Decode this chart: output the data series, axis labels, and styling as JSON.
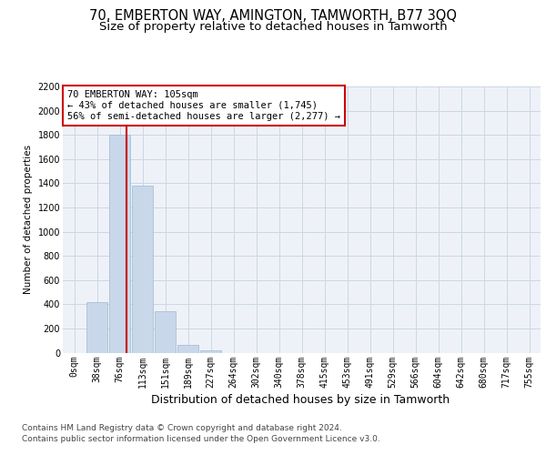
{
  "title": "70, EMBERTON WAY, AMINGTON, TAMWORTH, B77 3QQ",
  "subtitle": "Size of property relative to detached houses in Tamworth",
  "xlabel": "Distribution of detached houses by size in Tamworth",
  "ylabel": "Number of detached properties",
  "bar_labels": [
    "0sqm",
    "38sqm",
    "76sqm",
    "113sqm",
    "151sqm",
    "189sqm",
    "227sqm",
    "264sqm",
    "302sqm",
    "340sqm",
    "378sqm",
    "415sqm",
    "453sqm",
    "491sqm",
    "529sqm",
    "566sqm",
    "604sqm",
    "642sqm",
    "680sqm",
    "717sqm",
    "755sqm"
  ],
  "bar_values": [
    0,
    420,
    1800,
    1380,
    340,
    65,
    20,
    0,
    0,
    0,
    0,
    0,
    0,
    0,
    0,
    0,
    0,
    0,
    0,
    0,
    0
  ],
  "bar_color": "#c8d8ea",
  "bar_edge_color": "#a0b8ce",
  "vline_color": "#cc0000",
  "annotation_text": "70 EMBERTON WAY: 105sqm\n← 43% of detached houses are smaller (1,745)\n56% of semi-detached houses are larger (2,277) →",
  "annotation_box_color": "#ffffff",
  "annotation_box_edge": "#cc0000",
  "ylim": [
    0,
    2200
  ],
  "yticks": [
    0,
    200,
    400,
    600,
    800,
    1000,
    1200,
    1400,
    1600,
    1800,
    2000,
    2200
  ],
  "grid_color": "#ccd6e4",
  "footer1": "Contains HM Land Registry data © Crown copyright and database right 2024.",
  "footer2": "Contains public sector information licensed under the Open Government Licence v3.0.",
  "title_fontsize": 10.5,
  "subtitle_fontsize": 9.5,
  "xlabel_fontsize": 9,
  "ylabel_fontsize": 7.5,
  "tick_fontsize": 7,
  "annotation_fontsize": 7.5,
  "footer_fontsize": 6.5,
  "bg_color": "#eef2f8"
}
